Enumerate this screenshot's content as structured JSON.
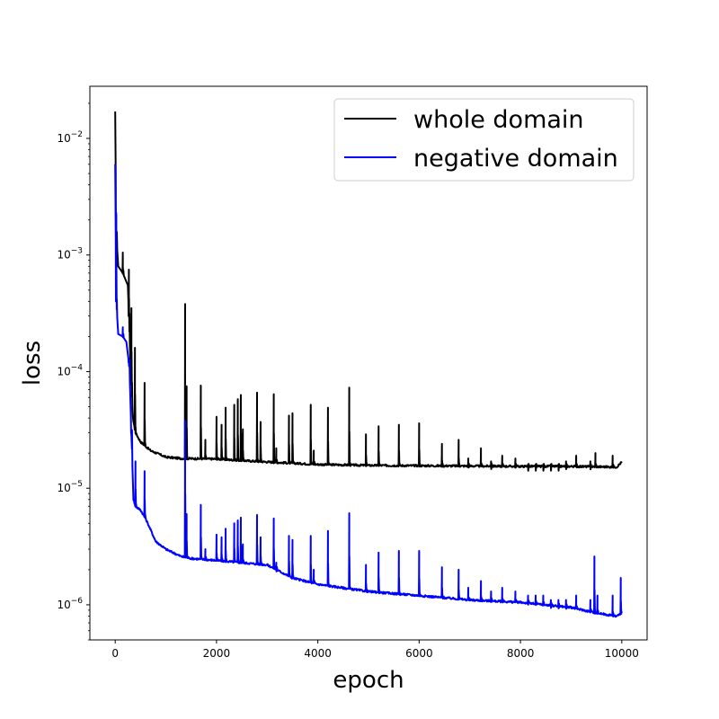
{
  "chart_data": {
    "type": "line",
    "title": "",
    "xlabel": "epoch",
    "ylabel": "loss",
    "xlim": [
      -500,
      10500
    ],
    "ylim": [
      5e-07,
      0.028
    ],
    "yscale": "log",
    "grid": false,
    "legend_position": "top-right",
    "x_ticks": [
      0,
      2000,
      4000,
      6000,
      8000,
      10000
    ],
    "x_tick_labels": [
      "0",
      "2000",
      "4000",
      "6000",
      "8000",
      "10000"
    ],
    "y_ticks": [
      1e-06,
      1e-05,
      0.0001,
      0.001,
      0.01
    ],
    "y_tick_labels": [
      {
        "base": "10",
        "exp": "−6"
      },
      {
        "base": "10",
        "exp": "−5"
      },
      {
        "base": "10",
        "exp": "−4"
      },
      {
        "base": "10",
        "exp": "−3"
      },
      {
        "base": "10",
        "exp": "−2"
      }
    ],
    "series": [
      {
        "name": "whole domain",
        "color": "#000000",
        "baseline": [
          [
            0,
            0.017
          ],
          [
            20,
            0.0015
          ],
          [
            60,
            0.0008
          ],
          [
            150,
            0.0007
          ],
          [
            250,
            0.00055
          ],
          [
            300,
            0.00012
          ],
          [
            350,
            4e-05
          ],
          [
            400,
            3e-05
          ],
          [
            500,
            2.5e-05
          ],
          [
            700,
            2.1e-05
          ],
          [
            1000,
            1.85e-05
          ],
          [
            1300,
            1.8e-05
          ],
          [
            2000,
            1.78e-05
          ],
          [
            3000,
            1.68e-05
          ],
          [
            4000,
            1.6e-05
          ],
          [
            5000,
            1.57e-05
          ],
          [
            6000,
            1.56e-05
          ],
          [
            7000,
            1.55e-05
          ],
          [
            8000,
            1.54e-05
          ],
          [
            9000,
            1.54e-05
          ],
          [
            9900,
            1.52e-05
          ],
          [
            10000,
            1.68e-05
          ]
        ],
        "spikes": [
          [
            20,
            0.0022
          ],
          [
            150,
            0.00105
          ],
          [
            270,
            0.00075
          ],
          [
            320,
            0.00035
          ],
          [
            390,
            0.00016
          ],
          [
            580,
            8e-05
          ],
          [
            1380,
            0.00038
          ],
          [
            1410,
            7.5e-05
          ],
          [
            1690,
            7.6e-05
          ],
          [
            1780,
            2.6e-05
          ],
          [
            2000,
            4.1e-05
          ],
          [
            2100,
            3.5e-05
          ],
          [
            2180,
            4.9e-05
          ],
          [
            2350,
            5.2e-05
          ],
          [
            2420,
            5.8e-05
          ],
          [
            2480,
            6.3e-05
          ],
          [
            2520,
            3.2e-05
          ],
          [
            2800,
            6.6e-05
          ],
          [
            2870,
            3.7e-05
          ],
          [
            3130,
            6.4e-05
          ],
          [
            3180,
            2.2e-05
          ],
          [
            3430,
            4.2e-05
          ],
          [
            3500,
            4.4e-05
          ],
          [
            3860,
            5.2e-05
          ],
          [
            3920,
            2.1e-05
          ],
          [
            4200,
            4.9e-05
          ],
          [
            4620,
            7.3e-05
          ],
          [
            4950,
            2.9e-05
          ],
          [
            5200,
            3.4e-05
          ],
          [
            5600,
            3.5e-05
          ],
          [
            6000,
            3.6e-05
          ],
          [
            6450,
            2.4e-05
          ],
          [
            6780,
            2.6e-05
          ],
          [
            6970,
            1.8e-05
          ],
          [
            7220,
            2.2e-05
          ],
          [
            7420,
            1.7e-05
          ],
          [
            7640,
            1.9e-05
          ],
          [
            7900,
            1.8e-05
          ],
          [
            8150,
            1.6e-05
          ],
          [
            8300,
            1.6e-05
          ],
          [
            8450,
            1.6e-05
          ],
          [
            8600,
            1.6e-05
          ],
          [
            8750,
            1.6e-05
          ],
          [
            8900,
            1.7e-05
          ],
          [
            9100,
            1.9e-05
          ],
          [
            9380,
            1.7e-05
          ],
          [
            9480,
            2e-05
          ],
          [
            9820,
            1.9e-05
          ]
        ]
      },
      {
        "name": "negative domain",
        "color": "#0000ff",
        "baseline": [
          [
            0,
            0.006
          ],
          [
            20,
            0.0004
          ],
          [
            60,
            0.00021
          ],
          [
            150,
            0.0002
          ],
          [
            220,
            0.00018
          ],
          [
            280,
            0.00011
          ],
          [
            320,
            3e-05
          ],
          [
            360,
            8e-06
          ],
          [
            400,
            7e-06
          ],
          [
            500,
            6.5e-06
          ],
          [
            600,
            5.5e-06
          ],
          [
            800,
            3.5e-06
          ],
          [
            1000,
            3e-06
          ],
          [
            1300,
            2.6e-06
          ],
          [
            1500,
            2.5e-06
          ],
          [
            2000,
            2.4e-06
          ],
          [
            3000,
            2.2e-06
          ],
          [
            3500,
            1.7e-06
          ],
          [
            4000,
            1.5e-06
          ],
          [
            5000,
            1.3e-06
          ],
          [
            6000,
            1.2e-06
          ],
          [
            7000,
            1.1e-06
          ],
          [
            8000,
            1.05e-06
          ],
          [
            9000,
            9.5e-07
          ],
          [
            9500,
            8.5e-07
          ],
          [
            9900,
            8e-07
          ],
          [
            10000,
            8.5e-07
          ]
        ],
        "spikes": [
          [
            20,
            0.0023
          ],
          [
            150,
            0.00024
          ],
          [
            270,
            0.00013
          ],
          [
            320,
            2.8e-05
          ],
          [
            400,
            1.7e-05
          ],
          [
            580,
            1.4e-05
          ],
          [
            1380,
            3.8e-05
          ],
          [
            1410,
            6e-06
          ],
          [
            1690,
            7.2e-06
          ],
          [
            1780,
            3e-06
          ],
          [
            2000,
            4e-06
          ],
          [
            2100,
            3.8e-06
          ],
          [
            2180,
            4.5e-06
          ],
          [
            2350,
            5e-06
          ],
          [
            2420,
            5.3e-06
          ],
          [
            2480,
            5.6e-06
          ],
          [
            2520,
            3.3e-06
          ],
          [
            2800,
            5.9e-06
          ],
          [
            2870,
            3.8e-06
          ],
          [
            3130,
            5.5e-06
          ],
          [
            3180,
            2.3e-06
          ],
          [
            3430,
            3.9e-06
          ],
          [
            3500,
            3.6e-06
          ],
          [
            3860,
            3.9e-06
          ],
          [
            3920,
            2e-06
          ],
          [
            4200,
            4.3e-06
          ],
          [
            4620,
            6.1e-06
          ],
          [
            4950,
            2.2e-06
          ],
          [
            5200,
            2.8e-06
          ],
          [
            5600,
            2.9e-06
          ],
          [
            6000,
            2.9e-06
          ],
          [
            6450,
            2.1e-06
          ],
          [
            6780,
            2e-06
          ],
          [
            6970,
            1.4e-06
          ],
          [
            7220,
            1.6e-06
          ],
          [
            7420,
            1.3e-06
          ],
          [
            7640,
            1.4e-06
          ],
          [
            7900,
            1.3e-06
          ],
          [
            8150,
            1.2e-06
          ],
          [
            8300,
            1.2e-06
          ],
          [
            8450,
            1.2e-06
          ],
          [
            8600,
            1.1e-06
          ],
          [
            8750,
            1.1e-06
          ],
          [
            8900,
            1.1e-06
          ],
          [
            9100,
            1.2e-06
          ],
          [
            9380,
            1.1e-06
          ],
          [
            9460,
            2.6e-06
          ],
          [
            9520,
            1.2e-06
          ],
          [
            9820,
            1.2e-06
          ],
          [
            9980,
            1.7e-06
          ]
        ]
      }
    ]
  }
}
